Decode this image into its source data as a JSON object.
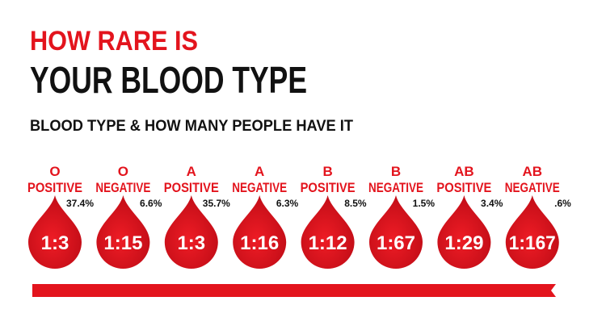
{
  "header": {
    "line1": "HOW RARE IS",
    "line2": "YOUR BLOOD TYPE",
    "subtitle": "BLOOD TYPE & HOW MANY PEOPLE HAVE IT"
  },
  "types": [
    {
      "group": "O",
      "rh": "POSITIVE",
      "percent": "37.4%",
      "ratio": "1:3"
    },
    {
      "group": "O",
      "rh": "NEGATIVE",
      "percent": "6.6%",
      "ratio": "1:15"
    },
    {
      "group": "A",
      "rh": "POSITIVE",
      "percent": "35.7%",
      "ratio": "1:3"
    },
    {
      "group": "A",
      "rh": "NEGATIVE",
      "percent": "6.3%",
      "ratio": "1:16"
    },
    {
      "group": "B",
      "rh": "POSITIVE",
      "percent": "8.5%",
      "ratio": "1:12"
    },
    {
      "group": "B",
      "rh": "NEGATIVE",
      "percent": "1.5%",
      "ratio": "1:67"
    },
    {
      "group": "AB",
      "rh": "POSITIVE",
      "percent": "3.4%",
      "ratio": "1:29"
    },
    {
      "group": "AB",
      "rh": "NEGATIVE",
      "percent": ".6%",
      "ratio": "1:167"
    }
  ]
}
